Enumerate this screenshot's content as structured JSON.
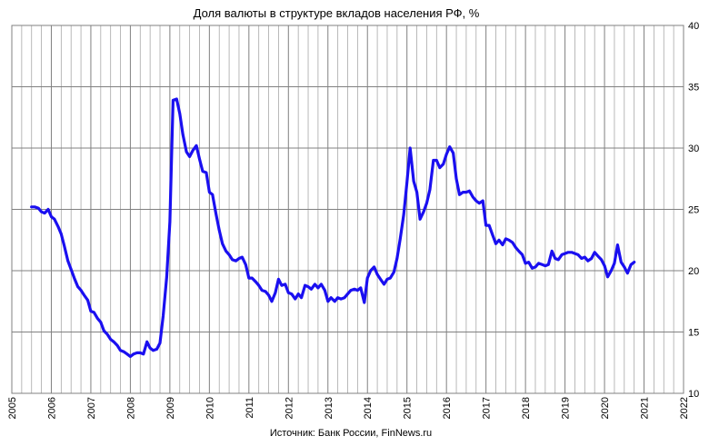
{
  "chart_data": {
    "type": "line",
    "title": "Доля валюты в структуре вкладов населения РФ, %",
    "source": "Источник: Банк России, FinNews.ru",
    "xlim": [
      2005,
      2022
    ],
    "ylim": [
      10,
      40
    ],
    "x_ticks": [
      "2005",
      "2006",
      "2007",
      "2008",
      "2009",
      "2010",
      "2011",
      "2012",
      "2013",
      "2014",
      "2015",
      "2016",
      "2017",
      "2018",
      "2019",
      "2020",
      "2021",
      "2022"
    ],
    "y_ticks": [
      "10",
      "15",
      "20",
      "25",
      "30",
      "35",
      "40"
    ],
    "y_axis_side": "right",
    "grid": true,
    "legend": "none",
    "series": [
      {
        "color": "#1a0ff0",
        "points": [
          [
            2005.5,
            25.2
          ],
          [
            2005.58,
            25.2
          ],
          [
            2005.67,
            25.1
          ],
          [
            2005.75,
            24.8
          ],
          [
            2005.83,
            24.7
          ],
          [
            2005.92,
            25.0
          ],
          [
            2006.0,
            24.4
          ],
          [
            2006.08,
            24.2
          ],
          [
            2006.17,
            23.6
          ],
          [
            2006.25,
            23.0
          ],
          [
            2006.33,
            22.0
          ],
          [
            2006.42,
            20.8
          ],
          [
            2006.5,
            20.1
          ],
          [
            2006.58,
            19.4
          ],
          [
            2006.67,
            18.7
          ],
          [
            2006.75,
            18.4
          ],
          [
            2006.83,
            18.0
          ],
          [
            2006.92,
            17.6
          ],
          [
            2007.0,
            16.7
          ],
          [
            2007.08,
            16.6
          ],
          [
            2007.17,
            16.1
          ],
          [
            2007.25,
            15.8
          ],
          [
            2007.33,
            15.1
          ],
          [
            2007.42,
            14.8
          ],
          [
            2007.5,
            14.4
          ],
          [
            2007.58,
            14.2
          ],
          [
            2007.67,
            13.9
          ],
          [
            2007.75,
            13.5
          ],
          [
            2007.83,
            13.4
          ],
          [
            2007.92,
            13.2
          ],
          [
            2008.0,
            13.0
          ],
          [
            2008.08,
            13.2
          ],
          [
            2008.17,
            13.3
          ],
          [
            2008.25,
            13.3
          ],
          [
            2008.33,
            13.2
          ],
          [
            2008.42,
            14.2
          ],
          [
            2008.5,
            13.7
          ],
          [
            2008.58,
            13.5
          ],
          [
            2008.67,
            13.6
          ],
          [
            2008.75,
            14.1
          ],
          [
            2008.83,
            16.3
          ],
          [
            2008.92,
            19.5
          ],
          [
            2009.0,
            24.0
          ],
          [
            2009.08,
            33.9
          ],
          [
            2009.17,
            34.0
          ],
          [
            2009.25,
            32.8
          ],
          [
            2009.33,
            31.1
          ],
          [
            2009.42,
            29.7
          ],
          [
            2009.5,
            29.3
          ],
          [
            2009.58,
            29.8
          ],
          [
            2009.67,
            30.2
          ],
          [
            2009.75,
            29.1
          ],
          [
            2009.83,
            28.1
          ],
          [
            2009.92,
            28.0
          ],
          [
            2010.0,
            26.4
          ],
          [
            2010.08,
            26.2
          ],
          [
            2010.17,
            24.6
          ],
          [
            2010.25,
            23.3
          ],
          [
            2010.33,
            22.2
          ],
          [
            2010.42,
            21.6
          ],
          [
            2010.5,
            21.3
          ],
          [
            2010.58,
            20.9
          ],
          [
            2010.67,
            20.8
          ],
          [
            2010.75,
            21.0
          ],
          [
            2010.83,
            21.1
          ],
          [
            2010.92,
            20.5
          ],
          [
            2011.0,
            19.4
          ],
          [
            2011.08,
            19.4
          ],
          [
            2011.17,
            19.1
          ],
          [
            2011.25,
            18.8
          ],
          [
            2011.33,
            18.4
          ],
          [
            2011.42,
            18.3
          ],
          [
            2011.5,
            18.0
          ],
          [
            2011.58,
            17.5
          ],
          [
            2011.67,
            18.2
          ],
          [
            2011.75,
            19.3
          ],
          [
            2011.83,
            18.8
          ],
          [
            2011.92,
            18.9
          ],
          [
            2012.0,
            18.2
          ],
          [
            2012.08,
            18.1
          ],
          [
            2012.17,
            17.7
          ],
          [
            2012.25,
            18.1
          ],
          [
            2012.33,
            17.8
          ],
          [
            2012.42,
            18.8
          ],
          [
            2012.5,
            18.7
          ],
          [
            2012.58,
            18.5
          ],
          [
            2012.67,
            18.9
          ],
          [
            2012.75,
            18.6
          ],
          [
            2012.83,
            18.9
          ],
          [
            2012.92,
            18.4
          ],
          [
            2013.0,
            17.5
          ],
          [
            2013.08,
            17.8
          ],
          [
            2013.17,
            17.5
          ],
          [
            2013.25,
            17.8
          ],
          [
            2013.33,
            17.7
          ],
          [
            2013.42,
            17.8
          ],
          [
            2013.5,
            18.1
          ],
          [
            2013.58,
            18.4
          ],
          [
            2013.67,
            18.5
          ],
          [
            2013.75,
            18.4
          ],
          [
            2013.83,
            18.6
          ],
          [
            2013.92,
            17.4
          ],
          [
            2014.0,
            19.4
          ],
          [
            2014.08,
            20.0
          ],
          [
            2014.17,
            20.3
          ],
          [
            2014.25,
            19.7
          ],
          [
            2014.33,
            19.3
          ],
          [
            2014.42,
            18.9
          ],
          [
            2014.5,
            19.3
          ],
          [
            2014.58,
            19.4
          ],
          [
            2014.67,
            19.9
          ],
          [
            2014.75,
            21.0
          ],
          [
            2014.83,
            22.6
          ],
          [
            2014.92,
            24.6
          ],
          [
            2015.0,
            27.2
          ],
          [
            2015.08,
            30.0
          ],
          [
            2015.17,
            27.3
          ],
          [
            2015.25,
            26.4
          ],
          [
            2015.33,
            24.2
          ],
          [
            2015.42,
            24.8
          ],
          [
            2015.5,
            25.5
          ],
          [
            2015.58,
            26.6
          ],
          [
            2015.67,
            29.0
          ],
          [
            2015.75,
            29.0
          ],
          [
            2015.83,
            28.4
          ],
          [
            2015.92,
            28.7
          ],
          [
            2016.0,
            29.5
          ],
          [
            2016.08,
            30.1
          ],
          [
            2016.17,
            29.6
          ],
          [
            2016.25,
            27.5
          ],
          [
            2016.33,
            26.2
          ],
          [
            2016.42,
            26.4
          ],
          [
            2016.5,
            26.4
          ],
          [
            2016.58,
            26.5
          ],
          [
            2016.67,
            26.0
          ],
          [
            2016.75,
            25.7
          ],
          [
            2016.83,
            25.5
          ],
          [
            2016.92,
            25.7
          ],
          [
            2017.0,
            23.7
          ],
          [
            2017.08,
            23.7
          ],
          [
            2017.17,
            22.9
          ],
          [
            2017.25,
            22.2
          ],
          [
            2017.33,
            22.5
          ],
          [
            2017.42,
            22.1
          ],
          [
            2017.5,
            22.6
          ],
          [
            2017.58,
            22.5
          ],
          [
            2017.67,
            22.3
          ],
          [
            2017.75,
            21.9
          ],
          [
            2017.83,
            21.6
          ],
          [
            2017.92,
            21.3
          ],
          [
            2018.0,
            20.6
          ],
          [
            2018.08,
            20.7
          ],
          [
            2018.17,
            20.2
          ],
          [
            2018.25,
            20.3
          ],
          [
            2018.33,
            20.6
          ],
          [
            2018.42,
            20.5
          ],
          [
            2018.5,
            20.4
          ],
          [
            2018.58,
            20.5
          ],
          [
            2018.67,
            21.6
          ],
          [
            2018.75,
            21.0
          ],
          [
            2018.83,
            20.9
          ],
          [
            2018.92,
            21.3
          ],
          [
            2019.0,
            21.4
          ],
          [
            2019.08,
            21.5
          ],
          [
            2019.17,
            21.5
          ],
          [
            2019.25,
            21.4
          ],
          [
            2019.33,
            21.3
          ],
          [
            2019.42,
            21.0
          ],
          [
            2019.5,
            21.1
          ],
          [
            2019.58,
            20.8
          ],
          [
            2019.67,
            21.0
          ],
          [
            2019.75,
            21.5
          ],
          [
            2019.83,
            21.2
          ],
          [
            2019.92,
            20.9
          ],
          [
            2020.0,
            20.4
          ],
          [
            2020.08,
            19.5
          ],
          [
            2020.17,
            20.0
          ],
          [
            2020.25,
            20.6
          ],
          [
            2020.33,
            22.1
          ],
          [
            2020.42,
            20.7
          ],
          [
            2020.5,
            20.3
          ],
          [
            2020.58,
            19.8
          ],
          [
            2020.67,
            20.5
          ],
          [
            2020.75,
            20.7
          ]
        ]
      }
    ]
  }
}
